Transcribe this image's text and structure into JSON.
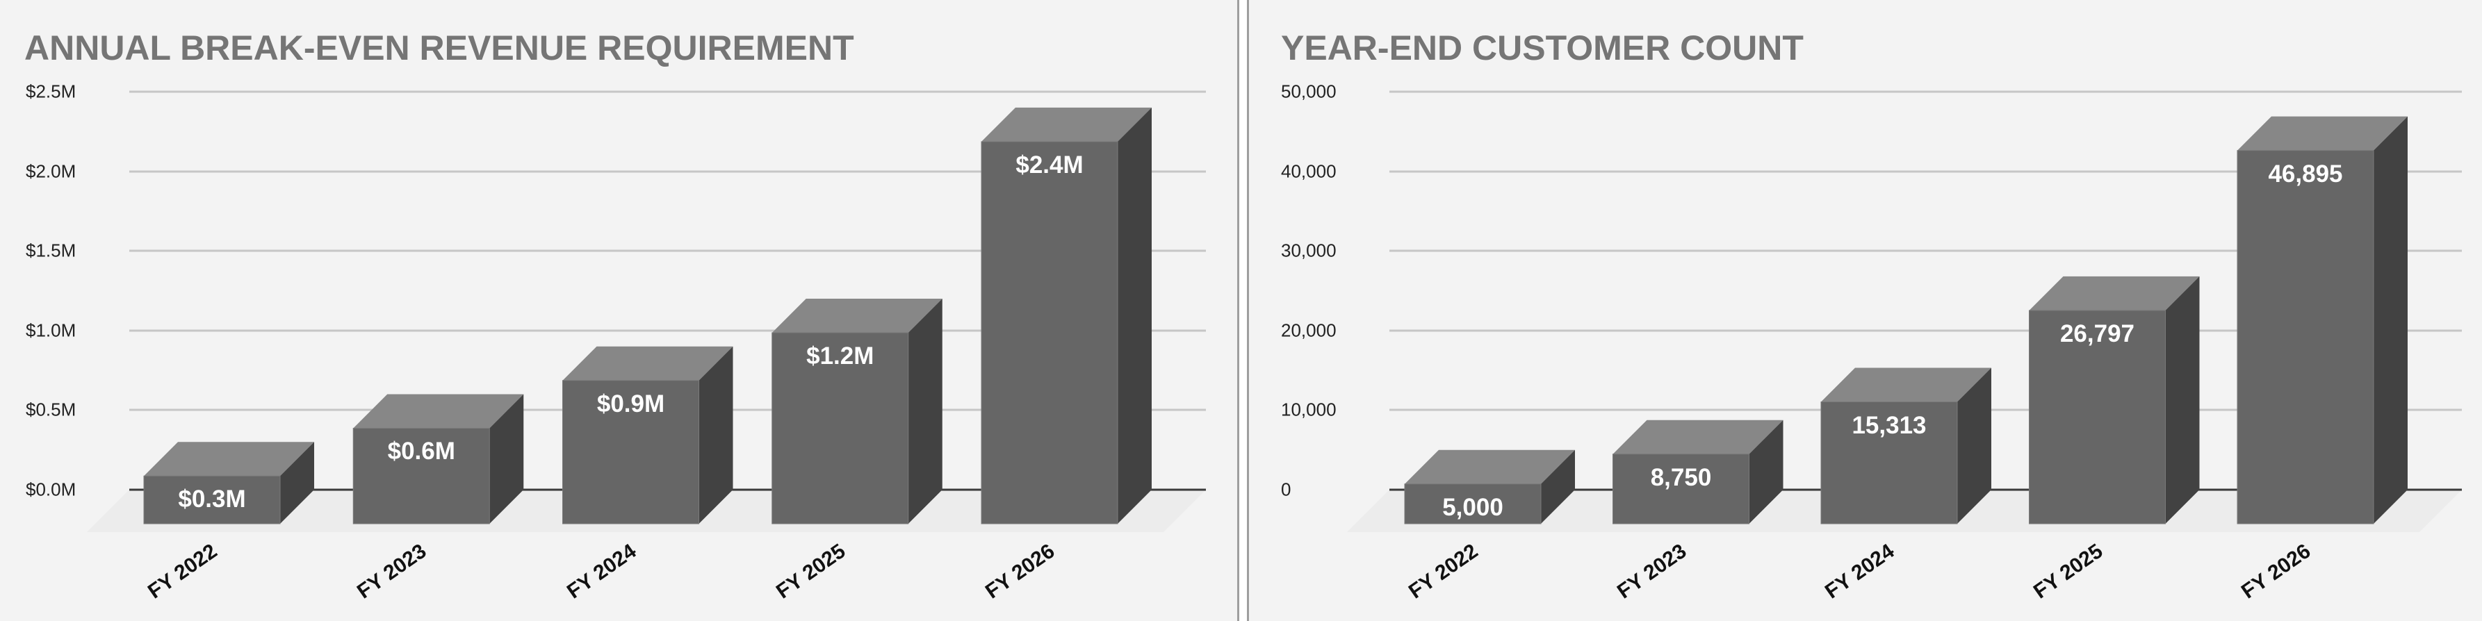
{
  "colors": {
    "background": "#f3f3f3",
    "title": "#757575",
    "bar_front": "#666666",
    "bar_top": "#878787",
    "bar_side": "#424242",
    "floor": "#ececec",
    "gridline": "#c6c6c6",
    "zeroline": "#3a3a3a"
  },
  "chart_data": [
    {
      "type": "bar",
      "style": "3d-column",
      "title": "ANNUAL BREAK-EVEN REVENUE REQUIREMENT",
      "xlabel": "",
      "ylabel": "",
      "categories": [
        "FY 2022",
        "FY 2023",
        "FY 2024",
        "FY 2025",
        "FY 2026"
      ],
      "values": [
        0.3,
        0.6,
        0.9,
        1.2,
        2.4
      ],
      "value_unit": "$M",
      "data_labels": [
        "$0.3M",
        "$0.6M",
        "$0.9M",
        "$1.2M",
        "$2.4M"
      ],
      "yticks": [
        "$2.5M",
        "$2.0M",
        "$1.5M",
        "$1.0M",
        "$0.5M",
        "$0.0M"
      ],
      "ylim": [
        0,
        2.5
      ],
      "grid": true,
      "legend": null
    },
    {
      "type": "bar",
      "style": "3d-column",
      "title": "YEAR-END CUSTOMER COUNT",
      "xlabel": "",
      "ylabel": "",
      "categories": [
        "FY 2022",
        "FY 2023",
        "FY 2024",
        "FY 2025",
        "FY 2026"
      ],
      "values": [
        5000,
        8750,
        15313,
        26797,
        46895
      ],
      "data_labels": [
        "5,000",
        "8,750",
        "15,313",
        "26,797",
        "46,895"
      ],
      "yticks": [
        "50,000",
        "40,000",
        "30,000",
        "20,000",
        "10,000",
        "0"
      ],
      "ylim": [
        0,
        50000
      ],
      "grid": true,
      "legend": null
    }
  ]
}
